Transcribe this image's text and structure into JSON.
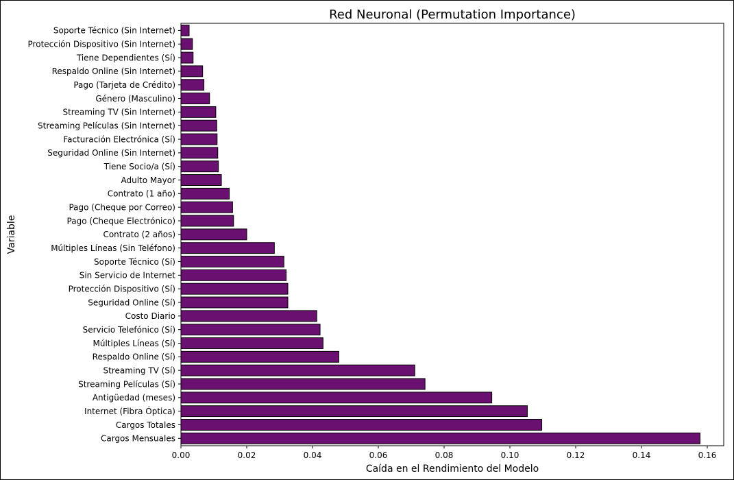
{
  "chart_data": {
    "type": "bar",
    "orientation": "horizontal",
    "title": "Red Neuronal (Permutation Importance)",
    "xlabel": "Caída en el Rendimiento del Modelo",
    "ylabel": "Variable",
    "xlim": [
      0.0,
      0.165
    ],
    "xticks": [
      0.0,
      0.02,
      0.04,
      0.06,
      0.08,
      0.1,
      0.12,
      0.14,
      0.16
    ],
    "xtick_labels": [
      "0.00",
      "0.02",
      "0.04",
      "0.06",
      "0.08",
      "0.10",
      "0.12",
      "0.14",
      "0.16"
    ],
    "grid": false,
    "bar_color": "#6a1070",
    "edge_color": "#000000",
    "categories": [
      "Soporte Técnico (Sin Internet)",
      "Protección Dispositivo (Sin Internet)",
      "Tiene Dependientes (Sí)",
      "Respaldo Online (Sin Internet)",
      "Pago (Tarjeta de Crédito)",
      "Género (Masculino)",
      "Streaming TV (Sin Internet)",
      "Streaming Películas (Sin Internet)",
      "Facturación Electrónica (Sí)",
      "Seguridad Online (Sin Internet)",
      "Tiene Socio/a (Sí)",
      "Adulto Mayor",
      "Contrato (1 año)",
      "Pago (Cheque por Correo)",
      "Pago (Cheque Electrónico)",
      "Contrato (2 años)",
      "Múltiples Líneas (Sin Teléfono)",
      "Soporte Técnico (Sí)",
      "Sin Servicio de Internet",
      "Protección Dispositivo (Sí)",
      "Seguridad Online (Sí)",
      "Costo Diario",
      "Servicio Telefónico (Sí)",
      "Múltiples Líneas (Sí)",
      "Respaldo Online (Sí)",
      "Streaming TV (Sí)",
      "Streaming Películas (Sí)",
      "Antigüedad (meses)",
      "Internet (Fibra Óptica)",
      "Cargos Totales",
      "Cargos Mensuales"
    ],
    "values": [
      0.0025,
      0.0035,
      0.0037,
      0.0066,
      0.007,
      0.0087,
      0.0106,
      0.0109,
      0.011,
      0.0112,
      0.0114,
      0.0123,
      0.0147,
      0.0157,
      0.016,
      0.02,
      0.0284,
      0.0313,
      0.032,
      0.0325,
      0.0325,
      0.0413,
      0.0423,
      0.0432,
      0.048,
      0.0711,
      0.0742,
      0.0945,
      0.1053,
      0.1097,
      0.1578
    ]
  }
}
